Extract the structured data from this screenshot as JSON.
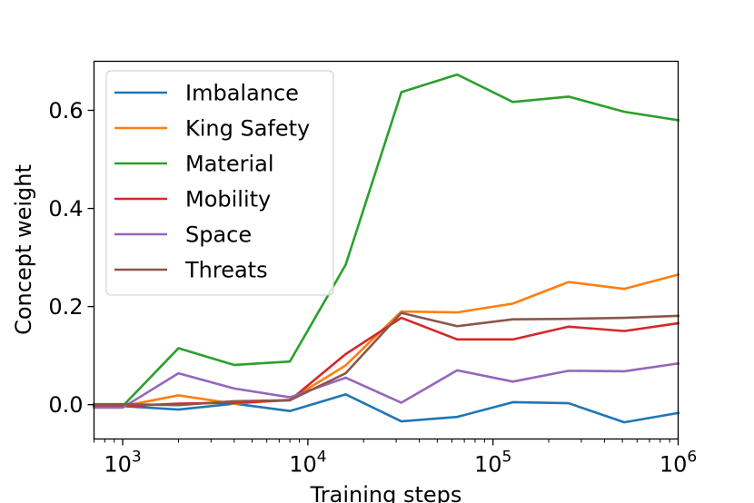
{
  "chart_data": {
    "type": "line",
    "xscale": "log",
    "xlabel": "Training steps",
    "ylabel": "Concept weight",
    "xlim": [
      700,
      1000000
    ],
    "ylim": [
      -0.07,
      0.7
    ],
    "grid": false,
    "legend_position": "upper-left",
    "x_ticks": [
      {
        "value": 1000,
        "base": "10",
        "exp": "3"
      },
      {
        "value": 10000,
        "base": "10",
        "exp": "4"
      },
      {
        "value": 100000,
        "base": "10",
        "exp": "5"
      },
      {
        "value": 1000000,
        "base": "10",
        "exp": "6"
      }
    ],
    "y_ticks": [
      {
        "value": 0.0,
        "label": "0.0"
      },
      {
        "value": 0.2,
        "label": "0.2"
      },
      {
        "value": 0.4,
        "label": "0.4"
      },
      {
        "value": 0.6,
        "label": "0.6"
      }
    ],
    "x": [
      700,
      1000,
      2000,
      4000,
      8000,
      16000,
      32000,
      64000,
      128000,
      256000,
      512000,
      1000000
    ],
    "series": [
      {
        "name": "Imbalance",
        "color": "#1f77b4",
        "values": [
          -0.003,
          -0.003,
          -0.01,
          0.002,
          -0.013,
          0.021,
          -0.034,
          -0.025,
          0.005,
          0.003,
          -0.036,
          -0.017
        ]
      },
      {
        "name": "King Safety",
        "color": "#ff7f0e",
        "values": [
          -0.003,
          -0.003,
          0.019,
          0.002,
          0.01,
          0.08,
          0.19,
          0.188,
          0.206,
          0.25,
          0.236,
          0.265
        ]
      },
      {
        "name": "Material",
        "color": "#2ca02c",
        "values": [
          -0.003,
          -0.003,
          0.115,
          0.081,
          0.088,
          0.285,
          0.637,
          0.673,
          0.617,
          0.628,
          0.597,
          0.58
        ]
      },
      {
        "name": "Mobility",
        "color": "#d62728",
        "values": [
          -0.003,
          -0.003,
          0.002,
          0.004,
          0.009,
          0.103,
          0.177,
          0.133,
          0.133,
          0.159,
          0.15,
          0.166
        ]
      },
      {
        "name": "Space",
        "color": "#9467bd",
        "values": [
          -0.006,
          -0.006,
          0.064,
          0.033,
          0.015,
          0.055,
          0.004,
          0.07,
          0.047,
          0.069,
          0.068,
          0.084
        ]
      },
      {
        "name": "Threats",
        "color": "#8c564b",
        "values": [
          0.001,
          0.001,
          -0.001,
          0.007,
          0.009,
          0.064,
          0.187,
          0.16,
          0.174,
          0.175,
          0.177,
          0.181
        ]
      }
    ]
  }
}
